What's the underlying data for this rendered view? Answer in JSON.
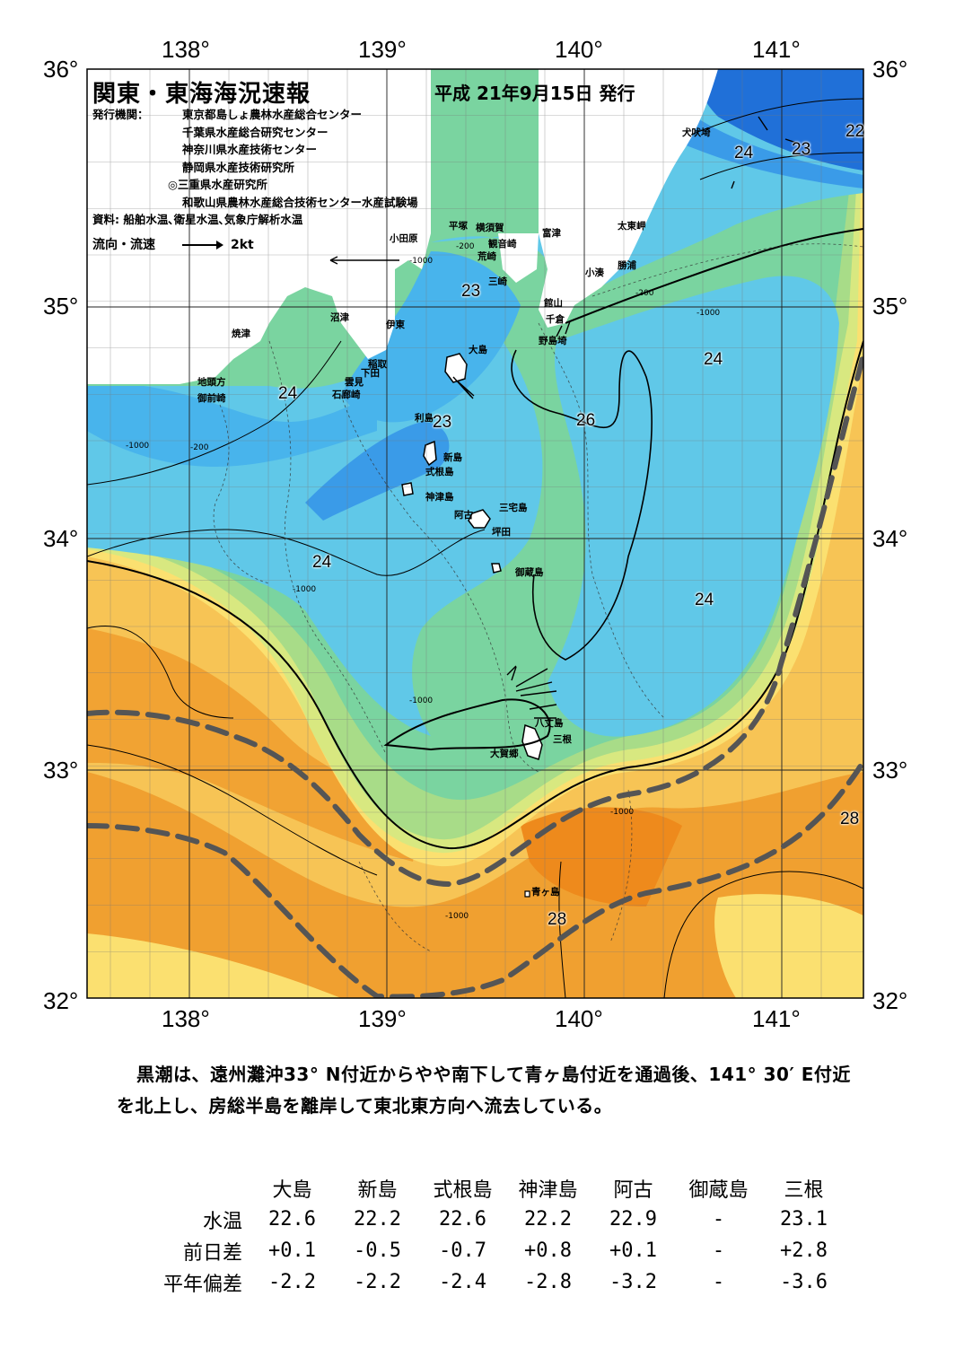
{
  "title": "関東・東海海況速報",
  "issue_date": "平成 21年9月15日 発行",
  "publishers": {
    "label": "発行機関：",
    "list": [
      "東京都島しょ農林水産総合センター",
      "千葉県水産総合研究センター",
      "神奈川県水産技術センター",
      "静岡県水産技術研究所",
      "◎三重県水産研究所",
      "和歌山県農林水産総合技術センター水産試験場"
    ]
  },
  "source": "資料: 船舶水温､衛星水温､気象庁解析水温",
  "legend": {
    "label": "流向・流速",
    "scale": "2kt"
  },
  "axes": {
    "lon_labels": [
      "138°",
      "139°",
      "140°",
      "141°"
    ],
    "lat_labels": [
      "36°",
      "35°",
      "34°",
      "33°",
      "32°"
    ]
  },
  "places": [
    "犬吠埼",
    "太東岬",
    "勝浦",
    "小湊",
    "館山",
    "千倉",
    "野島埼",
    "富津",
    "横須賀",
    "観音崎",
    "荒崎",
    "三崎",
    "平塚",
    "小田原",
    "沼津",
    "伊東",
    "焼津",
    "稲取",
    "下田",
    "雲見",
    "石廊崎",
    "地頭方",
    "御前崎",
    "大島",
    "利島",
    "新島",
    "式根島",
    "神津島",
    "阿古",
    "三宅島",
    "坪田",
    "御蔵島",
    "八丈島",
    "三根",
    "大賀郷",
    "青ヶ島"
  ],
  "isotherms": [
    "24",
    "23",
    "22",
    "23",
    "24",
    "24",
    "26",
    "23",
    "24",
    "24",
    "28",
    "28"
  ],
  "depth_labels": [
    "-200",
    "-1000"
  ],
  "colors": {
    "t28_plus": "#f0a030",
    "t27": "#f7c455",
    "t26": "#fbe070",
    "t25_5": "#d8e880",
    "t25": "#a8dc88",
    "t24_5": "#7ad4a0",
    "t24": "#60c8e8",
    "t23_5": "#48b4ec",
    "t23": "#3a9be8",
    "t22": "#2070d8",
    "land": "#ffffff",
    "kuroshio_axis": "#555555"
  },
  "summary": "黒潮は、遠州灘沖33° N付近からやや南下して青ヶ島付近を通過後、141° 30′ E付近を北上し、房総半島を離岸して東北東方向へ流去している。",
  "stations_table": {
    "columns": [
      "大島",
      "新島",
      "式根島",
      "神津島",
      "阿古",
      "御蔵島",
      "三根"
    ],
    "rows": [
      {
        "label": "水温",
        "values": [
          "22.6",
          "22.2",
          "22.6",
          "22.2",
          "22.9",
          "-",
          "23.1"
        ]
      },
      {
        "label": "前日差",
        "values": [
          "+0.1",
          "-0.5",
          "-0.7",
          "+0.8",
          "+0.1",
          "-",
          "+2.8"
        ]
      },
      {
        "label": "平年偏差",
        "values": [
          "-2.2",
          "-2.2",
          "-2.4",
          "-2.8",
          "-3.2",
          "-",
          "-3.6"
        ]
      }
    ]
  }
}
